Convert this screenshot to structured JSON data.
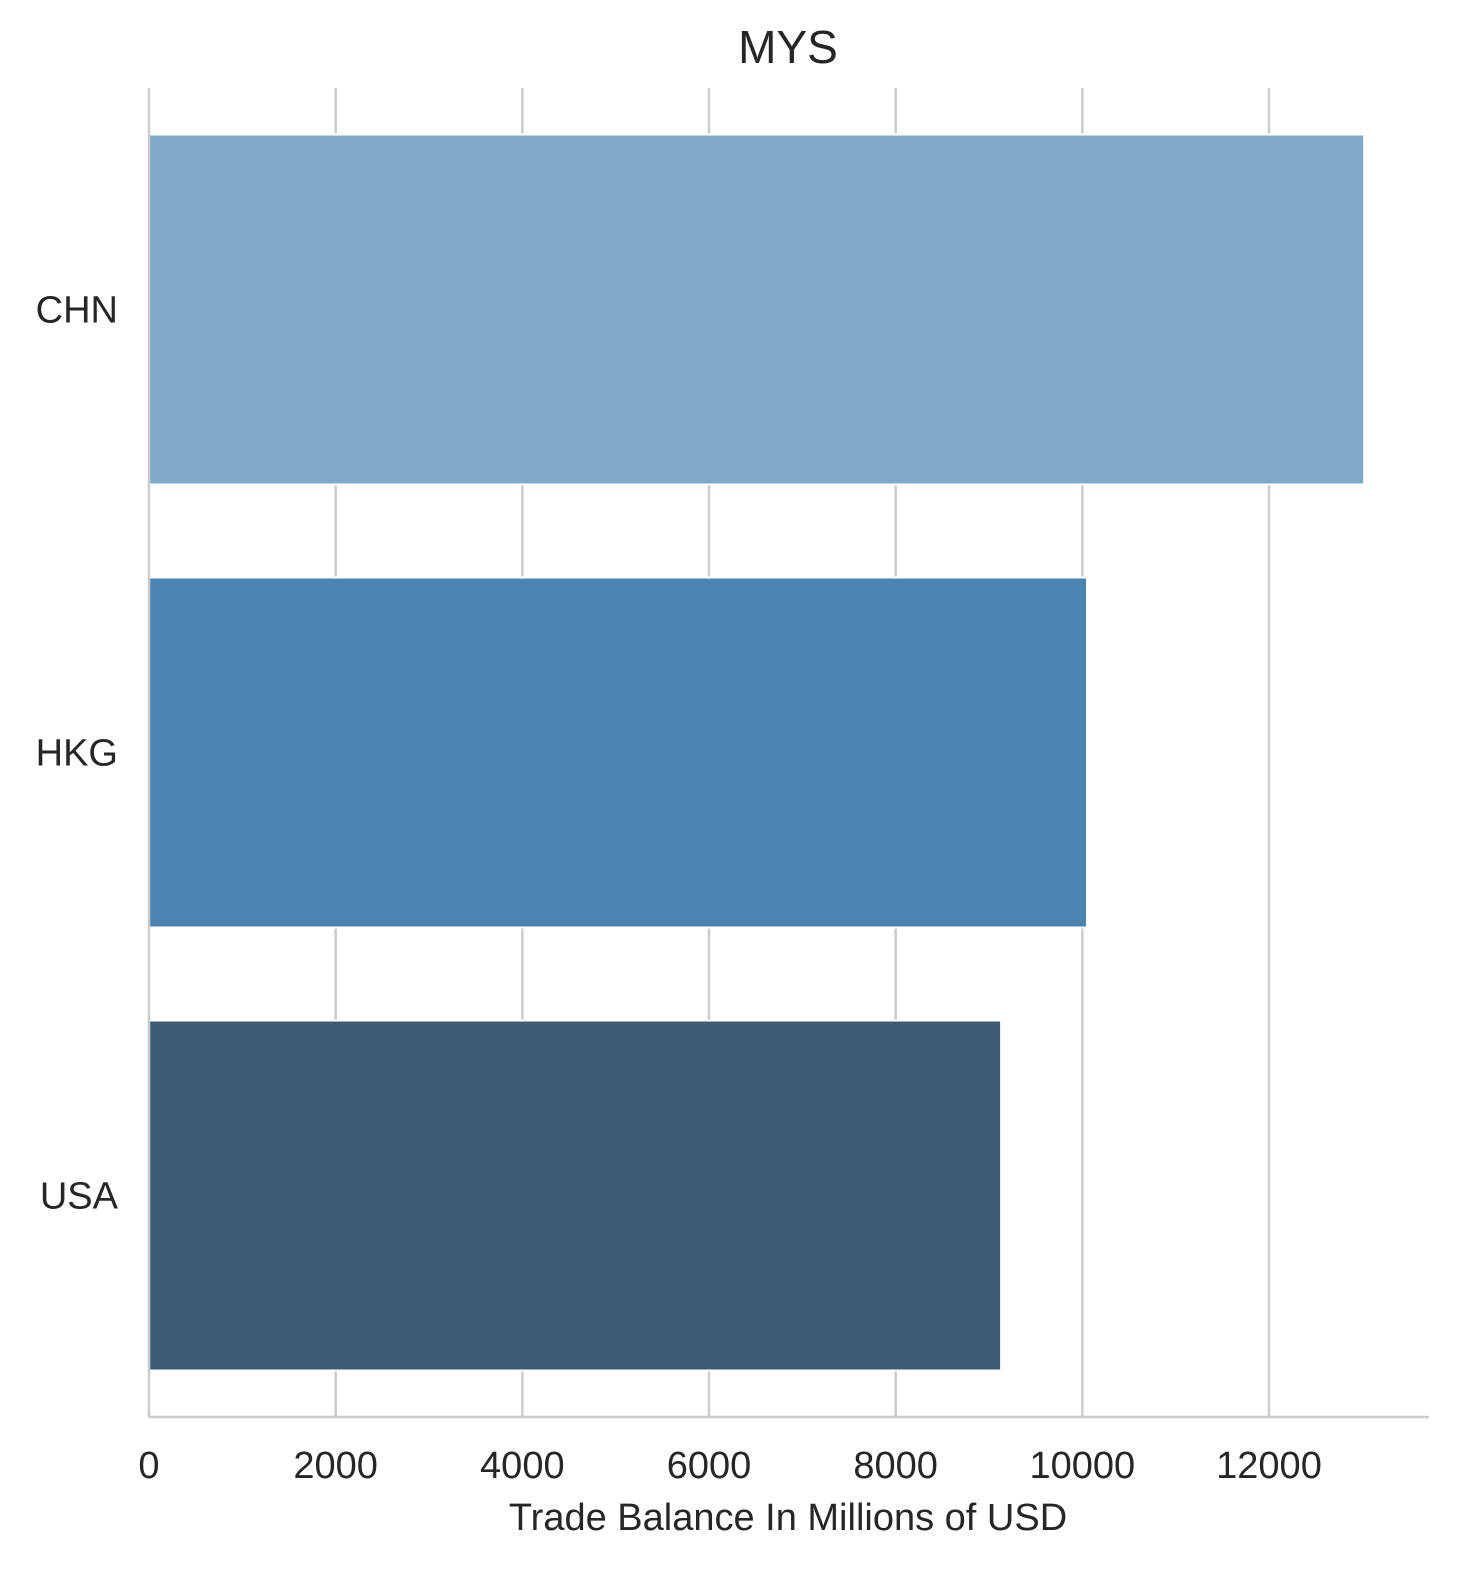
{
  "chart_data": {
    "type": "bar",
    "orientation": "horizontal",
    "title": "MYS",
    "xlabel": "Trade Balance In Millions of USD",
    "ylabel": "",
    "categories": [
      "CHN",
      "HKG",
      "USA"
    ],
    "values": [
      13020,
      10050,
      9130
    ],
    "colors": [
      "#7fa9c9",
      "#4a84b0",
      "#3d5d73"
    ],
    "xlim": [
      0,
      13700
    ],
    "xticks": [
      0,
      2000,
      4000,
      6000,
      8000,
      10000,
      12000
    ],
    "xtick_labels": [
      "0",
      "2000",
      "4000",
      "6000",
      "8000",
      "10000",
      "12000"
    ],
    "grid": "vertical",
    "grid_color": "#cccccc",
    "text_color": "#262626"
  }
}
